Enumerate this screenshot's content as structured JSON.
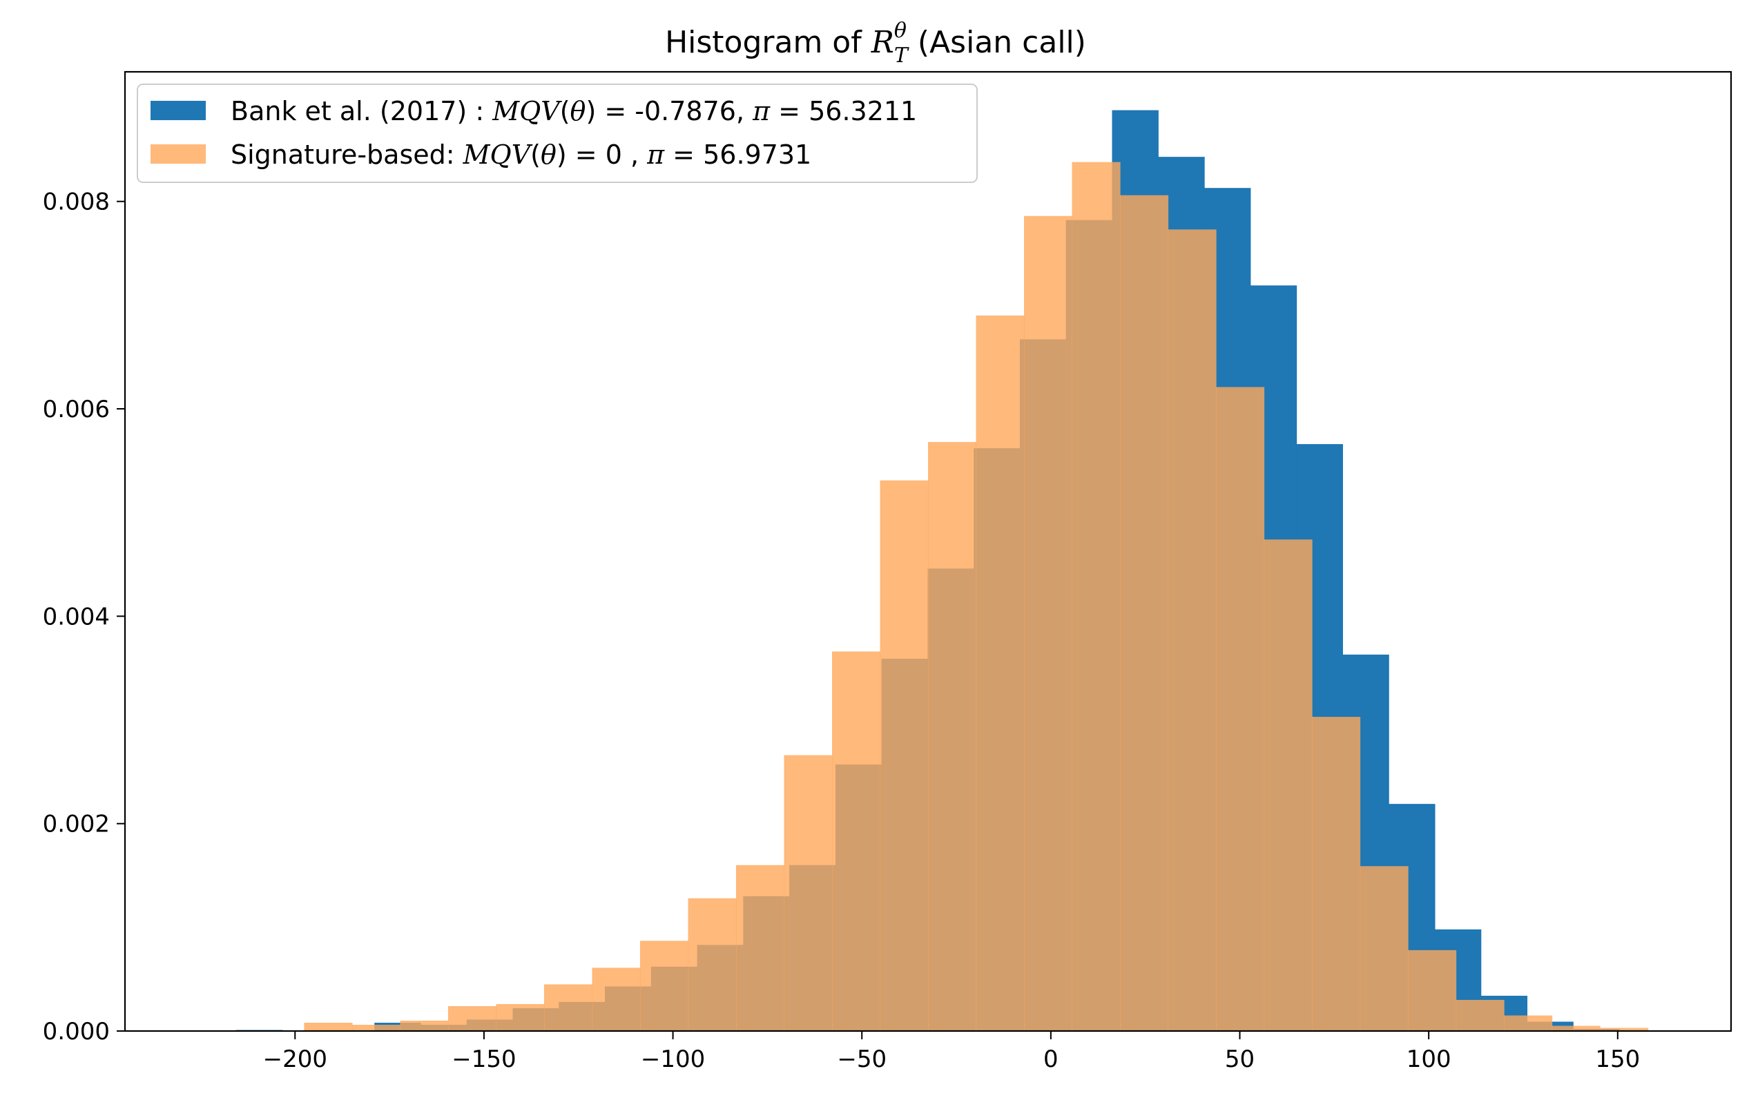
{
  "chart_data": {
    "type": "histogram",
    "title_prefix": "Histogram of ",
    "title_symbol": "R",
    "title_superscript": "θ",
    "title_subscript": "T",
    "title_suffix": " (Asian call)",
    "xlim": [
      -245,
      180
    ],
    "ylim": [
      0,
      0.00925
    ],
    "xticks": [
      -200,
      -150,
      -100,
      -50,
      0,
      50,
      100,
      150
    ],
    "xtick_labels": [
      "−200",
      "−150",
      "−100",
      "−50",
      "0",
      "50",
      "100",
      "150"
    ],
    "yticks": [
      0,
      0.002,
      0.004,
      0.006,
      0.008
    ],
    "ytick_labels": [
      "0.000",
      "0.002",
      "0.004",
      "0.006",
      "0.008"
    ],
    "legend_position": "upper-left",
    "overlap_color": "#a57c52",
    "series": [
      {
        "key": "bank",
        "color": "#1f77b4",
        "alpha": 1.0,
        "legend": {
          "prefix": "Bank et al. (2017) : ",
          "func": "MQV",
          "arg": "θ",
          "eq": " = ",
          "value": " -0.7876, ",
          "pi": "π",
          "pi_eq": " = ",
          "pi_value": "56.3211"
        },
        "bin_start": -215.6,
        "bin_width": 12.2,
        "values": [
          1e-05,
          0.0,
          0.0,
          8e-05,
          6e-05,
          0.00011,
          0.00022,
          0.00028,
          0.00043,
          0.00062,
          0.00083,
          0.0013,
          0.0016,
          0.00257,
          0.00359,
          0.00446,
          0.00562,
          0.00667,
          0.00782,
          0.00888,
          0.00843,
          0.00813,
          0.00719,
          0.00566,
          0.00363,
          0.00219,
          0.00098,
          0.00034,
          9e-05,
          2e-05,
          0.0,
          0.0
        ]
      },
      {
        "key": "signature",
        "color": "#ffa85a",
        "alpha": 0.8,
        "legend": {
          "prefix": "Signature-based: ",
          "func": "MQV",
          "arg": "θ",
          "eq": " = ",
          "value": "0 , ",
          "pi": "π",
          "pi_eq": " = ",
          "pi_value": "56.9731"
        },
        "bin_start": -197.6,
        "bin_width": 12.7,
        "values": [
          8e-05,
          6e-05,
          0.0001,
          0.00024,
          0.00026,
          0.00045,
          0.00061,
          0.00087,
          0.00128,
          0.0016,
          0.00266,
          0.00366,
          0.00531,
          0.00568,
          0.0069,
          0.00786,
          0.00838,
          0.00806,
          0.00773,
          0.00621,
          0.00474,
          0.00303,
          0.00159,
          0.00078,
          0.0003,
          0.00015,
          5e-05,
          3e-05
        ]
      }
    ]
  }
}
